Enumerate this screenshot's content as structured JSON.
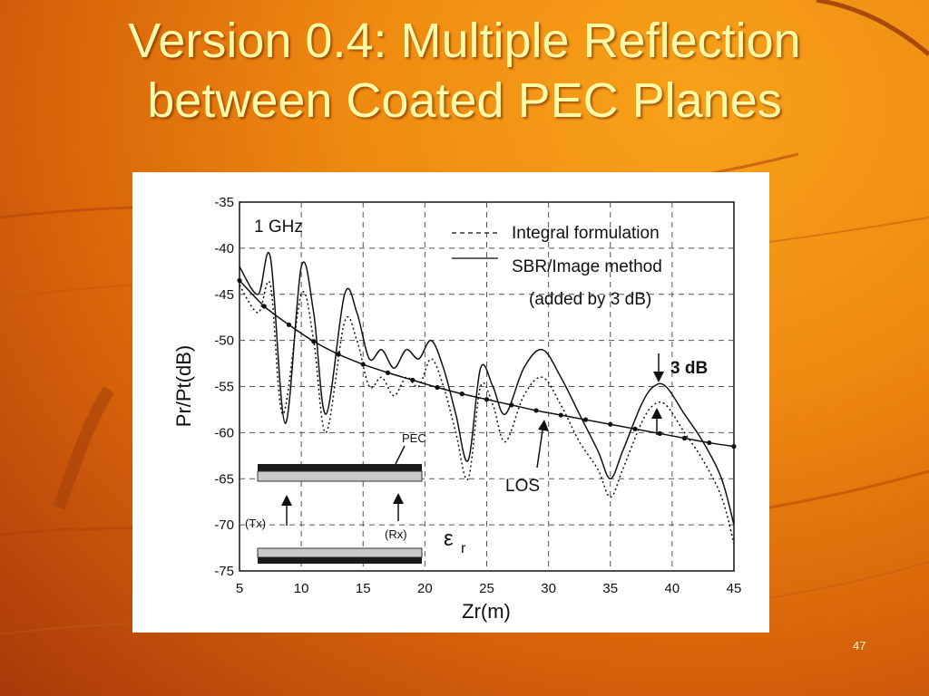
{
  "slide": {
    "title_line1": "Version 0.4: Multiple Reflection",
    "title_line2": "between Coated PEC Planes",
    "page_number": "47"
  },
  "colors": {
    "background_light": "#f7a21a",
    "background_dark": "#a9380a",
    "title_text": "#fff9a8"
  },
  "chart_data": {
    "type": "line",
    "xlabel": "Zr(m)",
    "ylabel": "Pr/Pt(dB)",
    "xlim": [
      5,
      45
    ],
    "ylim": [
      -75,
      -35
    ],
    "xticks": [
      5,
      10,
      15,
      20,
      25,
      30,
      35,
      40,
      45
    ],
    "yticks": [
      -35,
      -40,
      -45,
      -50,
      -55,
      -60,
      -65,
      -70,
      -75
    ],
    "grid": true,
    "legend_position": "top-right",
    "annotations": {
      "frequency": "1 GHz",
      "three_db": "3 dB",
      "los": "LOS",
      "pec": "PEC",
      "tx": "(Tx)",
      "rx": "(Rx)",
      "epsilon": "ε",
      "epsilon_sub": "r",
      "sbr_note": "(added by 3 dB)"
    },
    "series": [
      {
        "name": "Integral formulation",
        "style": "dotted",
        "x": [
          5,
          6.5,
          7.5,
          8.5,
          10,
          11,
          12,
          13.5,
          14.5,
          15.5,
          16.5,
          17.5,
          18.5,
          19.5,
          20.5,
          21.5,
          22.5,
          23.5,
          24.5,
          25.5,
          26.5,
          28,
          29.5,
          31,
          32.5,
          34,
          35,
          36,
          37.5,
          38.5,
          39.5,
          41,
          42.5,
          44,
          45
        ],
        "y": [
          -44,
          -47,
          -44,
          -58,
          -45,
          -50,
          -60,
          -48,
          -50,
          -55,
          -54,
          -56,
          -54,
          -55,
          -52,
          -55,
          -60,
          -65,
          -55,
          -57,
          -61,
          -56,
          -54,
          -57,
          -61,
          -64,
          -67,
          -64,
          -59,
          -57,
          -57,
          -60,
          -63,
          -67,
          -72
        ]
      },
      {
        "name": "SBR/Image method",
        "style": "solid",
        "x": [
          5,
          6.5,
          7.5,
          8.7,
          10,
          11,
          12,
          13.5,
          14.5,
          15.5,
          16.5,
          17.5,
          18.5,
          19.5,
          20.5,
          21.5,
          22.5,
          23.5,
          24.5,
          25.5,
          26.5,
          28,
          29.5,
          31,
          32.5,
          34,
          35,
          36,
          37.5,
          38.5,
          39.5,
          41,
          42.5,
          44,
          45
        ],
        "y": [
          -42,
          -45,
          -41,
          -59,
          -42,
          -47,
          -58,
          -45,
          -47,
          -52,
          -51,
          -53,
          -51,
          -52,
          -50,
          -53,
          -58,
          -63,
          -53,
          -55,
          -58,
          -53,
          -51,
          -54,
          -58,
          -62,
          -65,
          -62,
          -57,
          -55,
          -55,
          -58,
          -61,
          -65,
          -70
        ]
      },
      {
        "name": "LOS",
        "style": "solid-with-markers",
        "x": [
          5,
          7,
          9,
          11,
          13,
          15,
          17,
          19,
          21,
          23,
          25,
          27,
          29,
          31,
          33,
          35,
          37,
          39,
          41,
          43,
          45
        ],
        "y": [
          -43.5,
          -46.3,
          -48.3,
          -50.1,
          -51.5,
          -52.6,
          -53.5,
          -54.3,
          -55.1,
          -55.8,
          -56.4,
          -57.0,
          -57.6,
          -58.1,
          -58.6,
          -59.1,
          -59.6,
          -60.1,
          -60.6,
          -61.1,
          -61.5
        ]
      }
    ]
  }
}
